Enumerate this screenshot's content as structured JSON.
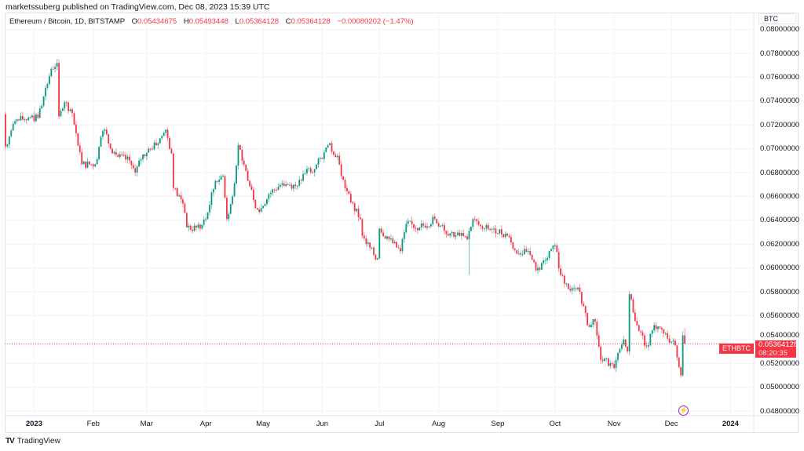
{
  "publisher_line": "marketssuberg published on TradingView.com, Dec 08, 2023 15:39 UTC",
  "legend": {
    "symbol": "Ethereum / Bitcoin, 1D, BITSTAMP",
    "o_label": "O",
    "o": "0.05434675",
    "h_label": "H",
    "h": "0.05493448",
    "l_label": "L",
    "l": "0.05364128",
    "c_label": "C",
    "c": "0.05364128",
    "change": "−0.00080202 (−1.47%)"
  },
  "currency_button": "BTC",
  "last_price": {
    "symbol": "ETHBTC",
    "price": "0.05364128",
    "countdown": "08:20:35"
  },
  "brand": {
    "logo": "TV",
    "name": "TradingView"
  },
  "event_icon": "lightning-icon",
  "colors": {
    "up": "#089981",
    "down": "#f23645",
    "grid": "#f0f3fa",
    "event": "#9c27b0"
  },
  "chart_data": {
    "type": "candlestick",
    "symbol": "ETHBTC",
    "interval": "1D",
    "ylim": [
      0.048,
      0.08
    ],
    "y_ticks": [
      "0.08000000",
      "0.07800000",
      "0.07600000",
      "0.07400000",
      "0.07200000",
      "0.07000000",
      "0.06800000",
      "0.06600000",
      "0.06400000",
      "0.06200000",
      "0.06000000",
      "0.05800000",
      "0.05600000",
      "0.05400000",
      "0.05200000",
      "0.05000000",
      "0.04800000"
    ],
    "x_ticks": [
      {
        "label": "2023",
        "date": "2023-01-01",
        "year": true
      },
      {
        "label": "Feb",
        "date": "2023-02-01"
      },
      {
        "label": "Mar",
        "date": "2023-03-01"
      },
      {
        "label": "Apr",
        "date": "2023-04-01"
      },
      {
        "label": "May",
        "date": "2023-05-01"
      },
      {
        "label": "Jun",
        "date": "2023-06-01"
      },
      {
        "label": "Jul",
        "date": "2023-07-01"
      },
      {
        "label": "Aug",
        "date": "2023-08-01"
      },
      {
        "label": "Sep",
        "date": "2023-09-01"
      },
      {
        "label": "Oct",
        "date": "2023-10-01"
      },
      {
        "label": "Nov",
        "date": "2023-11-01"
      },
      {
        "label": "Dec",
        "date": "2023-12-01"
      },
      {
        "label": "2024",
        "date": "2024-01-01",
        "year": true
      }
    ],
    "grid": true,
    "first_open": 0.0729,
    "approx_closes": [
      [
        "2022-12-17",
        0.0702
      ],
      [
        "2022-12-22",
        0.0723
      ],
      [
        "2022-12-29",
        0.0726
      ],
      [
        "2023-01-03",
        0.0726
      ],
      [
        "2023-01-06",
        0.0744
      ],
      [
        "2023-01-10",
        0.0767
      ],
      [
        "2023-01-13",
        0.0772
      ],
      [
        "2023-01-14",
        0.0727
      ],
      [
        "2023-01-17",
        0.0739
      ],
      [
        "2023-01-20",
        0.0733
      ],
      [
        "2023-01-23",
        0.0713
      ],
      [
        "2023-01-26",
        0.0687
      ],
      [
        "2023-02-02",
        0.0687
      ],
      [
        "2023-02-05",
        0.071
      ],
      [
        "2023-02-07",
        0.0716
      ],
      [
        "2023-02-10",
        0.07
      ],
      [
        "2023-02-14",
        0.0693
      ],
      [
        "2023-02-20",
        0.069
      ],
      [
        "2023-02-23",
        0.068
      ],
      [
        "2023-02-25",
        0.069
      ],
      [
        "2023-03-02",
        0.07
      ],
      [
        "2023-03-06",
        0.0703
      ],
      [
        "2023-03-11",
        0.0716
      ],
      [
        "2023-03-14",
        0.0696
      ],
      [
        "2023-03-15",
        0.0667
      ],
      [
        "2023-03-20",
        0.0654
      ],
      [
        "2023-03-22",
        0.0634
      ],
      [
        "2023-03-29",
        0.0633
      ],
      [
        "2023-04-01",
        0.0641
      ],
      [
        "2023-04-06",
        0.0673
      ],
      [
        "2023-04-10",
        0.0677
      ],
      [
        "2023-04-12",
        0.0641
      ],
      [
        "2023-04-15",
        0.066
      ],
      [
        "2023-04-18",
        0.0703
      ],
      [
        "2023-04-20",
        0.069
      ],
      [
        "2023-04-23",
        0.0673
      ],
      [
        "2023-04-26",
        0.0657
      ],
      [
        "2023-04-29",
        0.0647
      ],
      [
        "2023-05-04",
        0.0662
      ],
      [
        "2023-05-11",
        0.0671
      ],
      [
        "2023-05-19",
        0.0669
      ],
      [
        "2023-05-24",
        0.0683
      ],
      [
        "2023-05-28",
        0.0683
      ],
      [
        "2023-06-02",
        0.0697
      ],
      [
        "2023-06-04",
        0.0703
      ],
      [
        "2023-06-09",
        0.0694
      ],
      [
        "2023-06-11",
        0.0677
      ],
      [
        "2023-06-16",
        0.0655
      ],
      [
        "2023-06-21",
        0.0641
      ],
      [
        "2023-06-22",
        0.0627
      ],
      [
        "2023-06-28",
        0.0611
      ],
      [
        "2023-06-30",
        0.0608
      ],
      [
        "2023-07-01",
        0.0633
      ],
      [
        "2023-07-06",
        0.0624
      ],
      [
        "2023-07-12",
        0.0614
      ],
      [
        "2023-07-15",
        0.0637
      ],
      [
        "2023-07-22",
        0.0634
      ],
      [
        "2023-07-30",
        0.0641
      ],
      [
        "2023-08-04",
        0.0631
      ],
      [
        "2023-08-12",
        0.0627
      ],
      [
        "2023-08-16",
        0.0624
      ],
      [
        "2023-08-17",
        0.0631
      ],
      [
        "2023-08-19",
        0.0641
      ],
      [
        "2023-08-24",
        0.0633
      ],
      [
        "2023-08-30",
        0.0633
      ],
      [
        "2023-09-06",
        0.0627
      ],
      [
        "2023-09-10",
        0.0615
      ],
      [
        "2023-09-18",
        0.0611
      ],
      [
        "2023-09-21",
        0.0598
      ],
      [
        "2023-09-24",
        0.0604
      ],
      [
        "2023-09-29",
        0.0616
      ],
      [
        "2023-10-01",
        0.0619
      ],
      [
        "2023-10-04",
        0.0594
      ],
      [
        "2023-10-09",
        0.0581
      ],
      [
        "2023-10-14",
        0.058
      ],
      [
        "2023-10-18",
        0.0552
      ],
      [
        "2023-10-22",
        0.0555
      ],
      [
        "2023-10-25",
        0.0523
      ],
      [
        "2023-10-30",
        0.052
      ],
      [
        "2023-11-01",
        0.0516
      ],
      [
        "2023-11-06",
        0.054
      ],
      [
        "2023-11-08",
        0.053
      ],
      [
        "2023-11-09",
        0.0578
      ],
      [
        "2023-11-13",
        0.0552
      ],
      [
        "2023-11-18",
        0.0534
      ],
      [
        "2023-11-22",
        0.0552
      ],
      [
        "2023-11-27",
        0.0545
      ],
      [
        "2023-12-03",
        0.0535
      ],
      [
        "2023-12-06",
        0.051
      ],
      [
        "2023-12-07",
        0.05434675
      ]
    ],
    "notable_wicks": [
      {
        "date": "2023-08-17",
        "low": 0.0594
      }
    ],
    "last_candle": {
      "date": "2023-12-08",
      "open": 0.05434675,
      "high": 0.05493448,
      "low": 0.05364128,
      "close": 0.05364128
    }
  }
}
